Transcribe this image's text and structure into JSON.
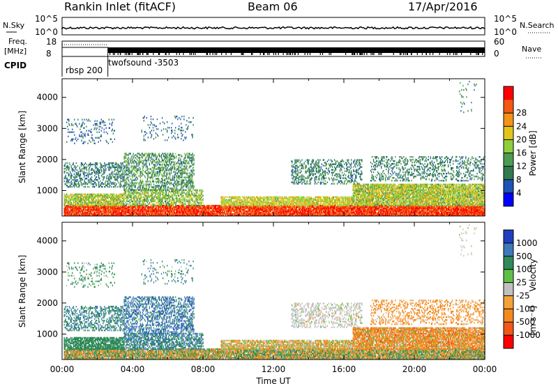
{
  "header": {
    "title": "Rankin Inlet (fitACF)",
    "beam": "Beam 06",
    "date": "17/Apr/2016"
  },
  "top_panels": {
    "nsky": {
      "left_label": "N.Sky",
      "right_label": "N.Search",
      "left_ticks": [
        "10^5",
        "10^0"
      ],
      "right_ticks": [
        "10^5",
        "10^0"
      ]
    },
    "freq": {
      "left_label": "Freq.",
      "left_unit": "[MHz]",
      "right_label": "Nave",
      "left_ticks": [
        "18",
        "8"
      ],
      "right_ticks": [
        "60",
        "0"
      ]
    },
    "cpid": {
      "label": "CPID",
      "modes": [
        {
          "name": "rbsp 200",
          "start_h": 0.0,
          "end_h": 2.6
        },
        {
          "name": "twofsound -3503",
          "start_h": 2.6,
          "end_h": 24.0
        }
      ]
    }
  },
  "chart_data": [
    {
      "type": "heatmap",
      "name": "power",
      "xlabel": "",
      "ylabel": "Slant Range [km]",
      "x_range_h": [
        0,
        24
      ],
      "ylim": [
        180,
        4600
      ],
      "yticks": [
        1000,
        2000,
        3000,
        4000
      ],
      "colorbar": {
        "label": "Power [dB]",
        "range": [
          0,
          32
        ],
        "ticks": [
          4,
          8,
          12,
          16,
          20,
          24,
          28
        ],
        "colors": [
          "#0000ff",
          "#1e52b4",
          "#2f7a4e",
          "#4d9a55",
          "#8fce3a",
          "#e4c41c",
          "#f2931a",
          "#f25a14",
          "#ff0000"
        ]
      }
    },
    {
      "type": "heatmap",
      "name": "velocity",
      "xlabel": "Time UT",
      "ylabel": "Slant Range [km]",
      "x_range_h": [
        0,
        24
      ],
      "ylim": [
        180,
        4600
      ],
      "yticks": [
        1000,
        2000,
        3000,
        4000
      ],
      "xticks": [
        "00:00",
        "04:00",
        "08:00",
        "12:00",
        "16:00",
        "20:00",
        "00:00"
      ],
      "colorbar": {
        "label": "Velocity",
        "unit": "[m s⁻¹]",
        "ticks": [
          "1000",
          "500",
          "100",
          "25",
          "-25",
          "-100",
          "-500",
          "-1000"
        ],
        "colors": [
          "#1f3fbf",
          "#3e7ab8",
          "#2f8a5a",
          "#5fc045",
          "#c0c0c0",
          "#f3a23a",
          "#f28a20",
          "#f2571a",
          "#ff0000"
        ]
      }
    }
  ],
  "echo_regions": [
    {
      "t": [
        0.1,
        24.0
      ],
      "r": [
        180,
        520
      ],
      "pw": [
        24,
        32
      ],
      "v": [
        -300,
        300
      ],
      "d": 0.9
    },
    {
      "t": [
        0.1,
        3.5
      ],
      "r": [
        500,
        900
      ],
      "pw": [
        12,
        22
      ],
      "v": [
        100,
        500
      ],
      "d": 0.75
    },
    {
      "t": [
        3.5,
        8.0
      ],
      "r": [
        500,
        1000
      ],
      "pw": [
        10,
        20
      ],
      "v": [
        200,
        800
      ],
      "d": 0.55
    },
    {
      "t": [
        9.0,
        16.5
      ],
      "r": [
        500,
        800
      ],
      "pw": [
        14,
        22
      ],
      "v": [
        -200,
        100
      ],
      "d": 0.7
    },
    {
      "t": [
        16.5,
        24.0
      ],
      "r": [
        500,
        1200
      ],
      "pw": [
        12,
        22
      ],
      "v": [
        -600,
        100
      ],
      "d": 0.8
    },
    {
      "t": [
        0.1,
        3.5
      ],
      "r": [
        1100,
        1900
      ],
      "pw": [
        4,
        14
      ],
      "v": [
        100,
        800
      ],
      "d": 0.35
    },
    {
      "t": [
        3.5,
        7.5
      ],
      "r": [
        1000,
        2200
      ],
      "pw": [
        6,
        16
      ],
      "v": [
        300,
        1100
      ],
      "d": 0.4
    },
    {
      "t": [
        13.0,
        17.0
      ],
      "r": [
        1200,
        2000
      ],
      "pw": [
        6,
        12
      ],
      "v": [
        -30,
        30
      ],
      "d": 0.3
    },
    {
      "t": [
        17.5,
        24.0
      ],
      "r": [
        1300,
        2100
      ],
      "pw": [
        6,
        12
      ],
      "v": [
        -400,
        0
      ],
      "d": 0.25
    },
    {
      "t": [
        0.2,
        3.0
      ],
      "r": [
        2500,
        3300
      ],
      "pw": [
        4,
        10
      ],
      "v": [
        -30,
        500
      ],
      "d": 0.12
    },
    {
      "t": [
        4.5,
        7.5
      ],
      "r": [
        2600,
        3400
      ],
      "pw": [
        4,
        10
      ],
      "v": [
        -30,
        800
      ],
      "d": 0.1
    },
    {
      "t": [
        22.5,
        23.5
      ],
      "r": [
        3500,
        4500
      ],
      "pw": [
        6,
        12
      ],
      "v": [
        -30,
        30
      ],
      "d": 0.05
    }
  ]
}
